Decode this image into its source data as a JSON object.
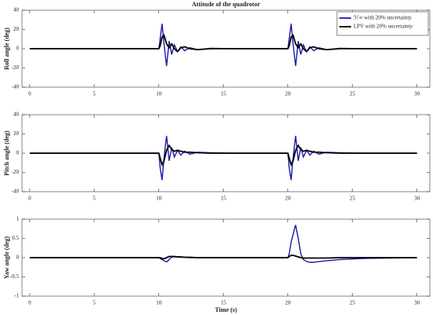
{
  "chart_data": [
    {
      "type": "line",
      "title": "Attitude of the quadrotor",
      "ylabel": "Roll angle (deg)",
      "x": [
        0,
        10,
        10.1,
        10.25,
        10.4,
        10.6,
        10.8,
        11.0,
        11.2,
        11.45,
        11.7,
        12.0,
        12.4,
        13.0,
        14.0,
        16.0,
        20,
        20.1,
        20.25,
        20.4,
        20.6,
        20.8,
        21.0,
        21.2,
        21.45,
        21.7,
        22.0,
        22.4,
        23.0,
        24.0,
        26.0,
        30.0
      ],
      "series": [
        {
          "name": "ℋ∞ with 20% uncertainty",
          "color": "#1a1aa6",
          "values": [
            0,
            0,
            10,
            26,
            5,
            -18,
            8,
            -6,
            4,
            -3,
            2,
            -2,
            1,
            -1,
            0.5,
            0,
            0,
            10,
            26,
            5,
            -18,
            8,
            -6,
            4,
            -3,
            2,
            -2,
            1,
            -1,
            0.5,
            0,
            0
          ]
        },
        {
          "name": "LPV with 20% uncertainty",
          "color": "#000000",
          "values": [
            0,
            0,
            3,
            12,
            14,
            5,
            1,
            5,
            0,
            -3,
            1,
            2,
            0,
            -1,
            0,
            0,
            0,
            3,
            12,
            14,
            5,
            1,
            5,
            0,
            -3,
            1,
            2,
            0,
            -1,
            0,
            0,
            0
          ]
        }
      ],
      "xlim": [
        -0.6,
        31
      ],
      "xticks": [
        0,
        5,
        10,
        15,
        20,
        25,
        30
      ],
      "ylim": [
        -40,
        40
      ],
      "yticks": [
        -40,
        -20,
        0,
        20,
        40
      ],
      "legend": "northeast"
    },
    {
      "type": "line",
      "ylabel": "Pitch angle (deg)",
      "x": [
        0,
        10,
        10.1,
        10.25,
        10.4,
        10.6,
        10.8,
        11.0,
        11.2,
        11.45,
        11.7,
        12.0,
        12.4,
        13.0,
        14.0,
        16.0,
        20,
        20.1,
        20.25,
        20.4,
        20.6,
        20.8,
        21.0,
        21.2,
        21.45,
        21.7,
        22.0,
        22.4,
        23.0,
        24.0,
        26.0,
        30.0
      ],
      "series": [
        {
          "color": "#1a1aa6",
          "values": [
            0,
            0,
            -15,
            -28,
            -5,
            18,
            -8,
            6,
            -4,
            3,
            -2,
            2,
            -1,
            1,
            0.5,
            0,
            0,
            -15,
            -28,
            -5,
            18,
            -8,
            6,
            -4,
            3,
            -2,
            2,
            -1,
            1,
            0.5,
            0,
            0
          ]
        },
        {
          "color": "#000000",
          "values": [
            0,
            0,
            -5,
            -12,
            -8,
            3,
            8,
            4,
            2,
            3,
            2,
            1,
            1,
            0.5,
            0,
            0,
            0,
            -5,
            -12,
            -8,
            3,
            8,
            4,
            2,
            3,
            2,
            1,
            1,
            0.5,
            0,
            0,
            0
          ]
        }
      ],
      "xlim": [
        -0.6,
        31
      ],
      "xticks": [
        0,
        5,
        10,
        15,
        20,
        25,
        30
      ],
      "ylim": [
        -40,
        40
      ],
      "yticks": [
        -40,
        -20,
        0,
        20,
        40
      ]
    },
    {
      "type": "line",
      "ylabel": "Yaw angle (deg)",
      "xlabel": "Time (s)",
      "x": [
        0,
        10,
        10.1,
        10.25,
        10.4,
        10.6,
        10.8,
        11.0,
        11.2,
        11.45,
        11.7,
        12.0,
        12.4,
        13.0,
        14.0,
        16.0,
        20,
        20.1,
        20.25,
        20.4,
        20.6,
        20.8,
        21.0,
        21.2,
        21.45,
        21.7,
        22.0,
        22.4,
        23.0,
        24.0,
        26.0,
        30.0
      ],
      "series": [
        {
          "color": "#1a1aa6",
          "values": [
            0,
            0,
            -0.02,
            -0.05,
            -0.08,
            -0.11,
            -0.05,
            0.02,
            0.02,
            0.02,
            0.01,
            0.01,
            0,
            0,
            0,
            0,
            0,
            0.1,
            0.4,
            0.6,
            0.85,
            0.5,
            0.1,
            -0.05,
            -0.1,
            -0.12,
            -0.12,
            -0.1,
            -0.08,
            -0.05,
            -0.02,
            0
          ]
        },
        {
          "color": "#000000",
          "values": [
            0,
            0,
            0,
            -0.02,
            -0.03,
            0,
            0.03,
            0.03,
            0.03,
            0.02,
            0.02,
            0.01,
            0.01,
            0,
            0,
            0,
            0,
            0.03,
            0.06,
            0.06,
            0.04,
            0.02,
            0,
            -0.01,
            -0.01,
            -0.01,
            -0.01,
            -0.01,
            -0.01,
            0,
            0,
            0
          ]
        }
      ],
      "xlim": [
        -0.6,
        31
      ],
      "xticks": [
        0,
        5,
        10,
        15,
        20,
        25,
        30
      ],
      "ylim": [
        -1,
        1
      ],
      "yticks": [
        -1,
        -0.5,
        0,
        0.5,
        1
      ]
    }
  ]
}
